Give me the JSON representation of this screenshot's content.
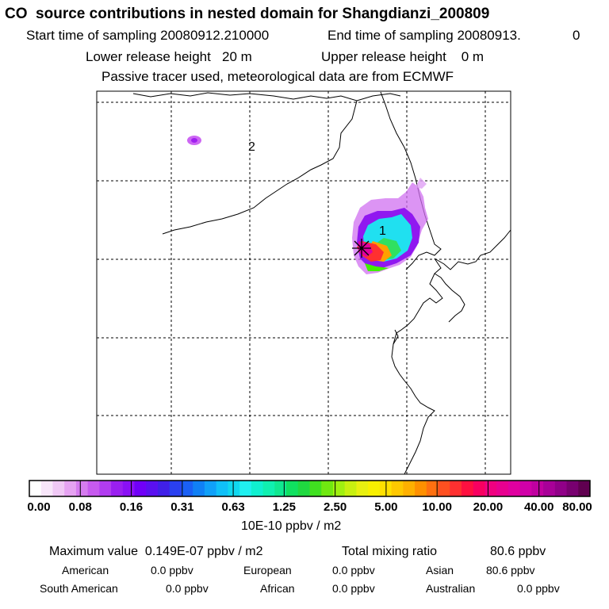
{
  "header": {
    "title": "CO  source contributions in nested domain for Shangdianzi_200809",
    "start_label": "Start time of sampling 20080912.210000",
    "end_label": "End time of sampling 20080913.",
    "end_hour": "0",
    "lower_height": "Lower release height   20 m",
    "upper_height": "Upper release height    0 m",
    "tracer_note": "Passive tracer used, meteorological data are from ECMWF"
  },
  "map": {
    "labels": [
      {
        "text": "1",
        "name": "region-label-1"
      },
      {
        "text": "2",
        "name": "region-label-2"
      }
    ],
    "receptor_marker": "asterisk-icon"
  },
  "colorbar": {
    "tick_labels": [
      "0.00",
      "0.08",
      "0.16",
      "0.31",
      "0.63",
      "1.25",
      "2.50",
      "5.00",
      "10.00",
      "20.00",
      "40.00",
      "80.00"
    ],
    "units": "10E-10 ppbv / m2",
    "colors": [
      "#ffffff",
      "#f8e6fa",
      "#f0c8f5",
      "#e6a3f2",
      "#d67cf0",
      "#c75aef",
      "#b13cf0",
      "#9a1ff0",
      "#8a10f5",
      "#7000f8",
      "#5a10f0",
      "#4020e8",
      "#2a40f0",
      "#1a60f5",
      "#1080f5",
      "#10a0f8",
      "#10c0f8",
      "#10d8f0",
      "#20f0f0",
      "#10f0d0",
      "#10f0b0",
      "#10e890",
      "#10e060",
      "#20d840",
      "#40e020",
      "#70e810",
      "#a0f010",
      "#c8f010",
      "#e8f010",
      "#f8f000",
      "#ffe000",
      "#ffc800",
      "#ffb000",
      "#ff9000",
      "#ff7010",
      "#ff5020",
      "#ff3030",
      "#ff1040",
      "#f80060",
      "#f00080",
      "#e80090",
      "#e000a0",
      "#d000a8",
      "#c000a0",
      "#a80098",
      "#900088",
      "#780070",
      "#600050"
    ]
  },
  "footer": {
    "max_label": "Maximum value  0.149E-07 ppbv / m2",
    "total_label": "Total mixing ratio",
    "total_value": "80.6 ppbv",
    "regions": [
      {
        "name": "American",
        "value": "0.0 ppbv"
      },
      {
        "name": "European",
        "value": "0.0 ppbv"
      },
      {
        "name": "Asian",
        "value": "80.6 ppbv"
      },
      {
        "name": "South American",
        "value": "0.0 ppbv"
      },
      {
        "name": "African",
        "value": "0.0 ppbv"
      },
      {
        "name": "Australian",
        "value": "0.0 ppbv"
      }
    ]
  }
}
